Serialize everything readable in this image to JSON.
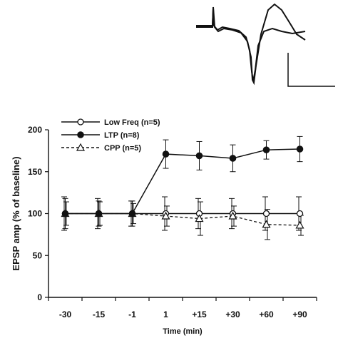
{
  "chart_data": {
    "type": "line",
    "ylabel": "EPSP amp (% of baseline)",
    "xlabel": "Time (min)",
    "categories": [
      "-30",
      "-15",
      "-1",
      "1",
      "+15",
      "+30",
      "+60",
      "+90"
    ],
    "ylim": [
      0,
      200
    ],
    "yticks": [
      0,
      50,
      100,
      150,
      200
    ],
    "grid": false,
    "legend_position": "top-left",
    "series": [
      {
        "name": "Low Freq (n=5)",
        "marker": "open-circle",
        "line": "solid",
        "values": [
          100,
          100,
          100,
          100,
          100,
          100,
          100,
          100
        ],
        "error": [
          20,
          18,
          15,
          20,
          18,
          18,
          20,
          20
        ]
      },
      {
        "name": "LTP (n=8)",
        "marker": "filled-circle",
        "line": "solid",
        "values": [
          100,
          100,
          100,
          171,
          169,
          166,
          176,
          177
        ],
        "error": [
          18,
          15,
          15,
          17,
          17,
          16,
          11,
          15
        ]
      },
      {
        "name": "CPP (n=5)",
        "marker": "open-triangle",
        "line": "dashed",
        "values": [
          100,
          100,
          100,
          97,
          94,
          97,
          87,
          86
        ],
        "error": [
          14,
          14,
          12,
          12,
          20,
          12,
          18,
          12
        ]
      }
    ],
    "inset": "superimposed EPSP waveforms with scale bar"
  }
}
